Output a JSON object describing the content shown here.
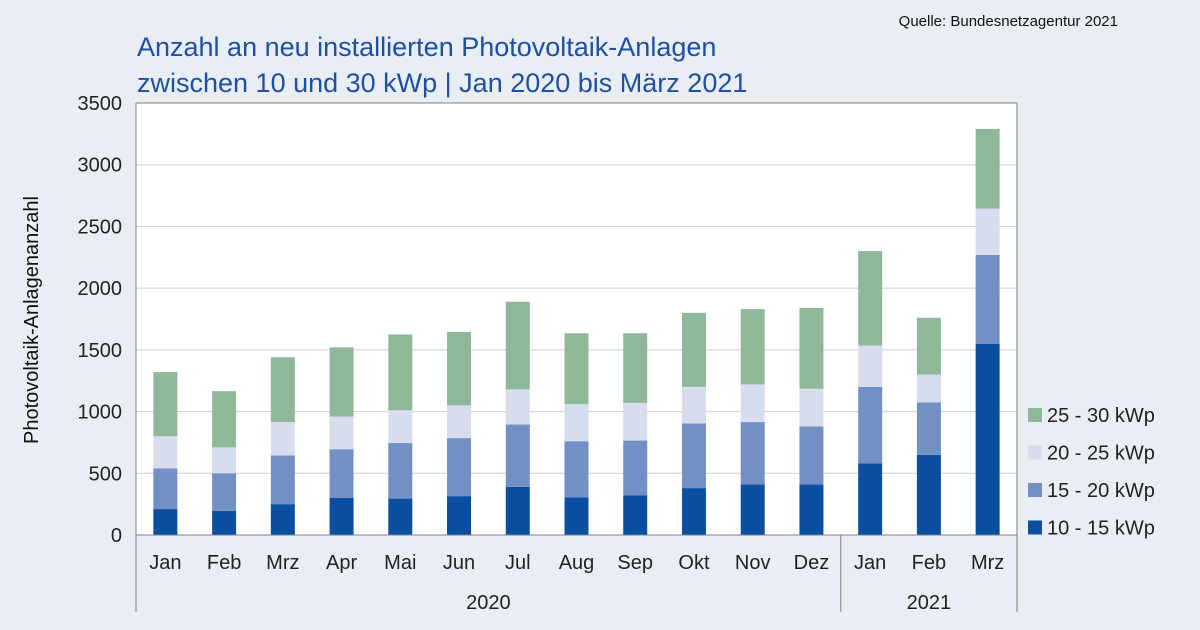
{
  "source": "Quelle: Bundesnetzagentur 2021",
  "colors": {
    "background": "#e8eef3",
    "plot_background": "#ffffff",
    "title": "#1f4fa0",
    "axis": "#808080",
    "s_10_15": "#0b4ea2",
    "s_15_20": "#7390c5",
    "s_20_25": "#d7ddef",
    "s_25_30": "#8eb897"
  },
  "chart_data": {
    "type": "bar",
    "stacked": true,
    "title_lines": [
      "Anzahl an neu installierten Photovoltaik-Anlagen",
      "zwischen 10 und 30 kWp | Jan 2020 bis März 2021"
    ],
    "xlabel": "",
    "ylabel": "Photovoltaik-Anlagenanzahl",
    "ylim": [
      0,
      3500
    ],
    "yticks": [
      0,
      500,
      1000,
      1500,
      2000,
      2500,
      3000,
      3500
    ],
    "grid": true,
    "legend_position": "right",
    "categories": [
      "Jan",
      "Feb",
      "Mrz",
      "Apr",
      "Mai",
      "Jun",
      "Jul",
      "Aug",
      "Sep",
      "Okt",
      "Nov",
      "Dez",
      "Jan",
      "Feb",
      "Mrz"
    ],
    "groups": [
      {
        "label": "2020",
        "start": 0,
        "end": 11
      },
      {
        "label": "2021",
        "start": 12,
        "end": 14
      }
    ],
    "series": [
      {
        "name": "10 - 15 kWp",
        "color": "#0b4ea2",
        "values": [
          210,
          195,
          250,
          300,
          295,
          315,
          390,
          305,
          320,
          380,
          410,
          410,
          580,
          650,
          1550
        ]
      },
      {
        "name": "15 - 20 kWp",
        "color": "#7390c5",
        "values": [
          330,
          305,
          395,
          395,
          450,
          470,
          505,
          455,
          445,
          525,
          505,
          470,
          620,
          425,
          720
        ]
      },
      {
        "name": "20 - 25 kWp",
        "color": "#d7ddef",
        "values": [
          260,
          210,
          270,
          265,
          265,
          265,
          285,
          300,
          305,
          295,
          305,
          305,
          335,
          225,
          375
        ]
      },
      {
        "name": "25 - 30 kWp",
        "color": "#8eb897",
        "values": [
          520,
          455,
          525,
          560,
          615,
          595,
          710,
          575,
          565,
          600,
          610,
          655,
          765,
          460,
          645
        ]
      }
    ]
  }
}
